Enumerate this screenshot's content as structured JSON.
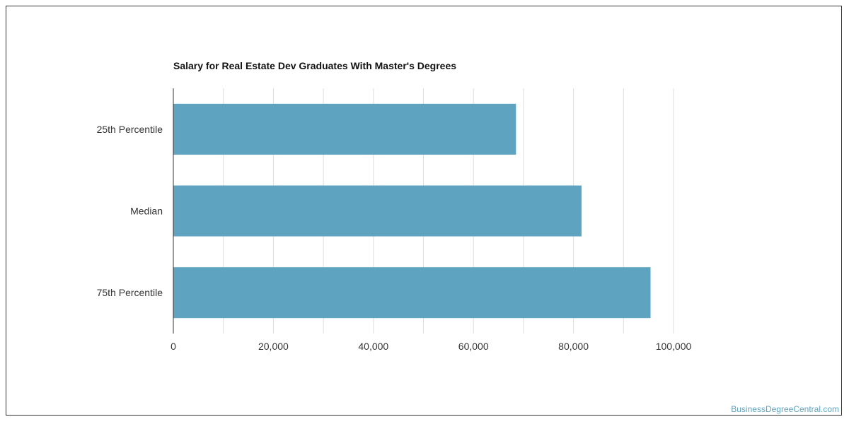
{
  "chart_data": {
    "type": "bar",
    "orientation": "horizontal",
    "title": "Salary for Real Estate Dev Graduates With Master's Degrees",
    "categories": [
      "25th Percentile",
      "Median",
      "75th Percentile"
    ],
    "values": [
      68500,
      81600,
      95400
    ],
    "xlim": [
      0,
      100000
    ],
    "x_ticks": [
      0,
      20000,
      40000,
      60000,
      80000,
      100000
    ],
    "x_tick_labels": [
      "0",
      "20,000",
      "40,000",
      "60,000",
      "80,000",
      "100,000"
    ],
    "xlabel": "",
    "ylabel": "",
    "grid": true,
    "bar_color": "#5ea3bf",
    "grid_color": "#dddddd",
    "axis_color": "#333333"
  },
  "watermark": "BusinessDegreeCentral.com"
}
